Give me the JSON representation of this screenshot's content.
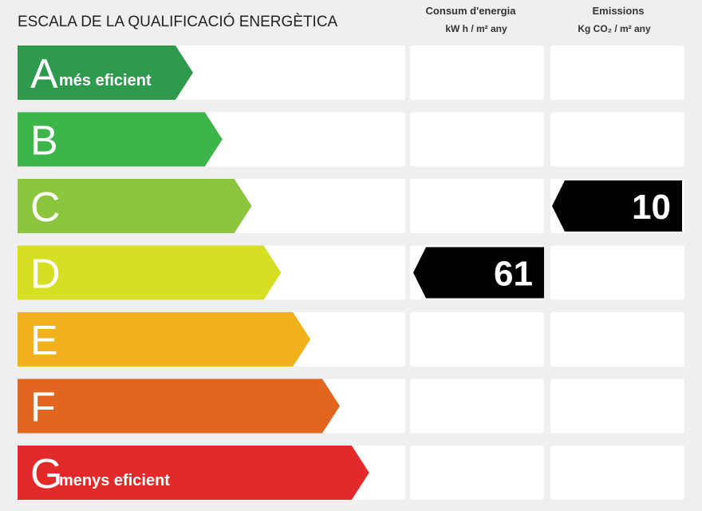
{
  "title": "ESCALA DE LA QUALIFICACIÓ ENERGÈTICA",
  "columns": [
    {
      "title": "Consum d'energia",
      "unit": "kW h / m² any"
    },
    {
      "title": "Emissions",
      "unit": "Kg CO₂ / m² any"
    }
  ],
  "rows": [
    {
      "letter": "A",
      "label": "més eficient",
      "color": "#2e9a4e"
    },
    {
      "letter": "B",
      "color": "#3cb54a"
    },
    {
      "letter": "C",
      "color": "#8cc63f",
      "emissions": 10
    },
    {
      "letter": "D",
      "color": "#d6df22",
      "consumption": 61
    },
    {
      "letter": "E",
      "color": "#f0b11b"
    },
    {
      "letter": "F",
      "color": "#e2661f"
    },
    {
      "letter": "G",
      "label": "menys eficient",
      "color": "#e32a2b"
    }
  ]
}
